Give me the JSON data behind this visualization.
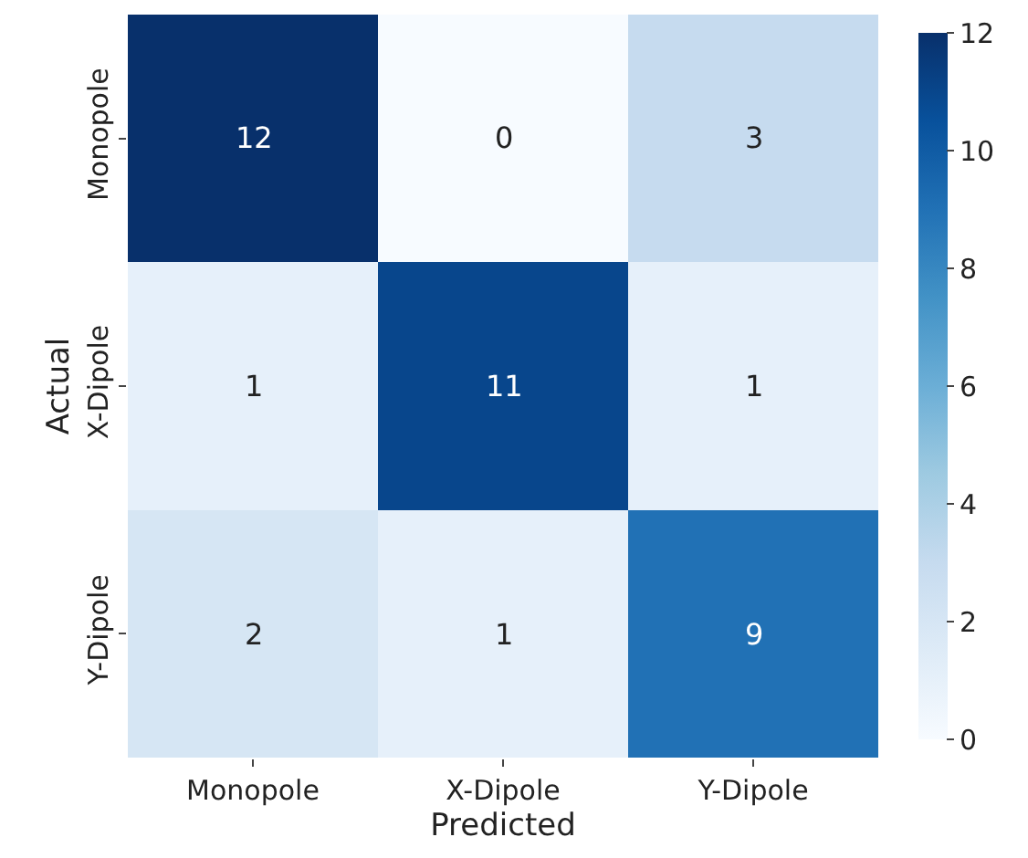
{
  "chart_data": {
    "type": "heatmap",
    "xlabel": "Predicted",
    "ylabel": "Actual",
    "categories": [
      "Monopole",
      "X-Dipole",
      "Y-Dipole"
    ],
    "y_categories": [
      "Monopole",
      "X-Dipole",
      "Y-Dipole"
    ],
    "cells": [
      [
        12,
        0,
        3
      ],
      [
        1,
        11,
        1
      ],
      [
        2,
        1,
        9
      ]
    ],
    "clim": [
      0,
      12
    ],
    "cticks": [
      0,
      2,
      4,
      6,
      8,
      10,
      12
    ],
    "data_labels": true
  }
}
